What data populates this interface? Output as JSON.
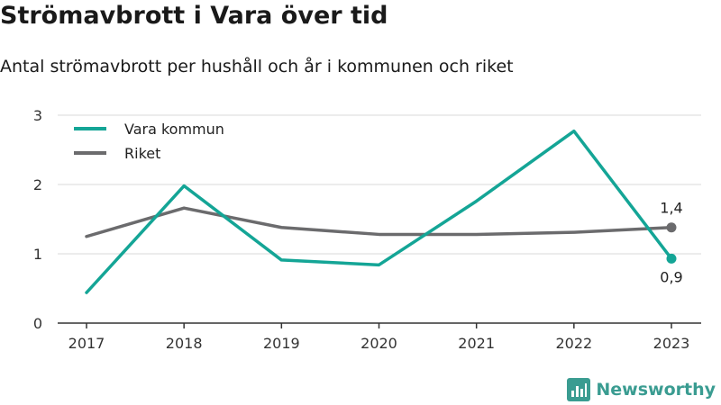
{
  "title": "Strömavbrott i Vara över tid",
  "subtitle": "Antal strömavbrott per hushåll och år i kommunen och riket",
  "brand": {
    "name": "Newsworthy",
    "logo_icon": "newsworthy-logo-icon",
    "color": "#3a9c91"
  },
  "chart_data": {
    "type": "line",
    "x": [
      "2017",
      "2018",
      "2019",
      "2020",
      "2021",
      "2022",
      "2023"
    ],
    "ylim": [
      0,
      3
    ],
    "yticks": [
      "0",
      "1",
      "2",
      "3"
    ],
    "grid": true,
    "legend_position": "top-left",
    "series": [
      {
        "name": "Vara kommun",
        "color": "#14a596",
        "values": [
          0.44,
          1.98,
          0.91,
          0.84,
          1.76,
          2.77,
          0.93
        ],
        "end_label": "0,9"
      },
      {
        "name": "Riket",
        "color": "#6b6b6d",
        "values": [
          1.25,
          1.66,
          1.38,
          1.28,
          1.28,
          1.31,
          1.38
        ],
        "end_label": "1,4"
      }
    ]
  }
}
